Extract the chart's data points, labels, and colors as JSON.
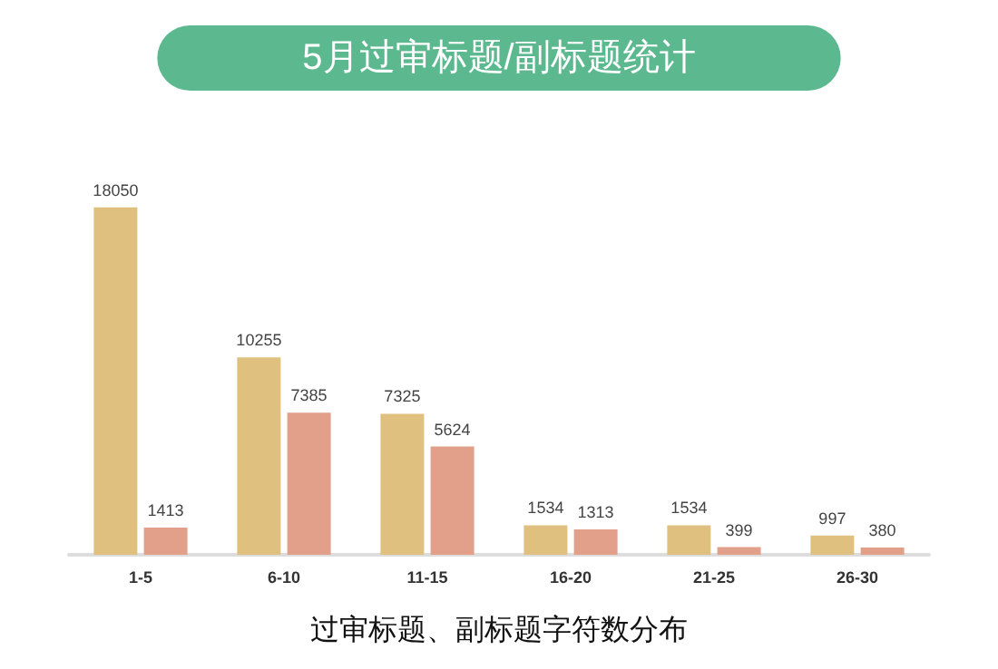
{
  "chart_data": {
    "type": "bar",
    "title": "5月过审标题/副标题统计",
    "xlabel": "过审标题、副标题字符数分布",
    "categories": [
      "1-5",
      "6-10",
      "11-15",
      "16-20",
      "21-25",
      "26-30"
    ],
    "series": [
      {
        "color": "#dfc07e",
        "values": [
          18050,
          10255,
          7325,
          1534,
          1534,
          997
        ]
      },
      {
        "color": "#e2a08a",
        "values": [
          1413,
          7385,
          5624,
          1313,
          399,
          380
        ]
      }
    ],
    "data_labels": true
  }
}
